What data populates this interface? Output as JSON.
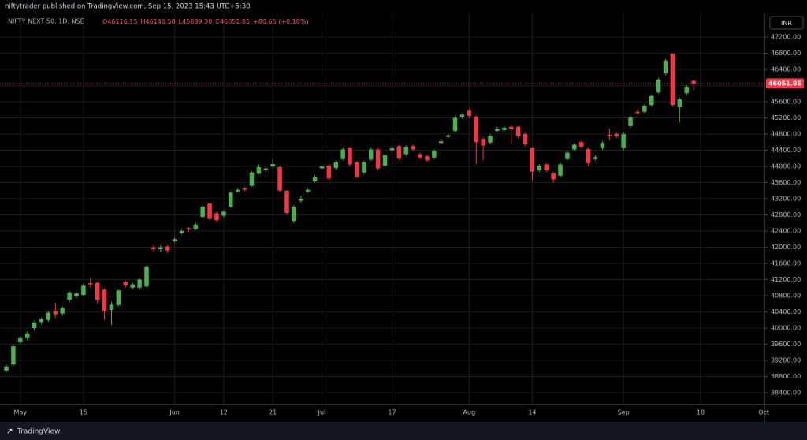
{
  "chart_data": {
    "type": "candlestick",
    "header": "niftytrader published on TradingView.com, Sep 15, 2023 15:43 UTC+5:30",
    "title": "NIFTY NEXT 50, 1D, NSE",
    "ohlc_labels": [
      "O46116.15",
      "H46146.50",
      "L45889.30",
      "C46051.85",
      "+80.65 (+0.18%)"
    ],
    "last_price_label": "46051.85",
    "currency": "INR",
    "brand": "TradingView",
    "up_color": "#4caf50",
    "down_color": "#f23645",
    "grid": true,
    "xlim": [
      -0.9,
      108.1
    ],
    "ylim": [
      38128,
      47785
    ],
    "xticks": [
      {
        "value": 2,
        "label": "May"
      },
      {
        "value": 11,
        "label": "15"
      },
      {
        "value": 24,
        "label": "Jun"
      },
      {
        "value": 31,
        "label": "12"
      },
      {
        "value": 38,
        "label": "21"
      },
      {
        "value": 45,
        "label": "Jul"
      },
      {
        "value": 55,
        "label": "17"
      },
      {
        "value": 66,
        "label": "Aug"
      },
      {
        "value": 75,
        "label": "14"
      },
      {
        "value": 88,
        "label": "Sep"
      },
      {
        "value": 99,
        "label": "18"
      },
      {
        "value": 108,
        "label": "Oct"
      }
    ],
    "yticks": [
      {
        "value": 38400,
        "label": "38400.00"
      },
      {
        "value": 38800,
        "label": "38800.00"
      },
      {
        "value": 39200,
        "label": "39200.00"
      },
      {
        "value": 39600,
        "label": "39600.00"
      },
      {
        "value": 40000,
        "label": "40000.00"
      },
      {
        "value": 40400,
        "label": "40400.00"
      },
      {
        "value": 40800,
        "label": "40800.00"
      },
      {
        "value": 41200,
        "label": "41200.00"
      },
      {
        "value": 41600,
        "label": "41600.00"
      },
      {
        "value": 42000,
        "label": "42000.00"
      },
      {
        "value": 42400,
        "label": "42400.00"
      },
      {
        "value": 42800,
        "label": "42800.00"
      },
      {
        "value": 43200,
        "label": "43200.00"
      },
      {
        "value": 43600,
        "label": "43600.00"
      },
      {
        "value": 44000,
        "label": "44000.00"
      },
      {
        "value": 44400,
        "label": "44400.00"
      },
      {
        "value": 44800,
        "label": "44800.00"
      },
      {
        "value": 45200,
        "label": "45200.00"
      },
      {
        "value": 45600,
        "label": "45600.00"
      },
      {
        "value": 46000,
        "label": "46000.00"
      },
      {
        "value": 46400,
        "label": "46400.00"
      },
      {
        "value": 46800,
        "label": "46800.00"
      },
      {
        "value": 47200,
        "label": "47200.00"
      }
    ],
    "open": [
      38950,
      39100,
      39650,
      39750,
      40000,
      40150,
      40200,
      40420,
      40360,
      40700,
      40780,
      40820,
      41110,
      41120,
      40950,
      40450,
      40570,
      41150,
      41000,
      41000,
      41030,
      42000,
      41950,
      42020,
      42150,
      42350,
      42470,
      42450,
      42750,
      43080,
      42840,
      42780,
      43000,
      43380,
      43460,
      43520,
      43820,
      43900,
      44000,
      43980,
      43400,
      42650,
      43150,
      43380,
      43630,
      43950,
      44020,
      43960,
      44180,
      44450,
      44100,
      43850,
      44170,
      44420,
      44020,
      44400,
      44500,
      44300,
      44500,
      44300,
      44250,
      44220,
      44580,
      44730,
      44880,
      45220,
      45380,
      45230,
      44680,
      44590,
      44880,
      44900,
      44980,
      44980,
      44800,
      44450,
      43900,
      44050,
      43830,
      43770,
      44180,
      44420,
      44600,
      44430,
      44180,
      44450,
      44780,
      44800,
      44450,
      45000,
      45350,
      45350,
      45520,
      45830,
      46300,
      46790,
      45460,
      45810,
      46116.15
    ],
    "close": [
      39050,
      39550,
      39750,
      39870,
      40140,
      40220,
      40380,
      40340,
      40500,
      40880,
      40860,
      41050,
      41080,
      40700,
      40420,
      40580,
      40930,
      41050,
      41080,
      41200,
      41520,
      41950,
      42000,
      41920,
      42200,
      42400,
      42440,
      42560,
      43000,
      42700,
      42670,
      42880,
      43350,
      43420,
      43420,
      43850,
      43980,
      43950,
      44060,
      43400,
      42850,
      43000,
      43200,
      43420,
      43750,
      44000,
      43700,
      44100,
      44420,
      44050,
      43750,
      44100,
      44420,
      43950,
      44280,
      44450,
      44200,
      44480,
      44420,
      44220,
      44150,
      44380,
      44620,
      44770,
      45200,
      45280,
      45250,
      44600,
      44520,
      44750,
      44920,
      44960,
      44920,
      44750,
      44550,
      43870,
      44020,
      43900,
      43680,
      44050,
      44340,
      44540,
      44480,
      44080,
      44230,
      44580,
      44750,
      44740,
      44800,
      45210,
      45320,
      45500,
      45740,
      46150,
      46620,
      45520,
      45660,
      45970,
      46051.85
    ],
    "high": [
      39100,
      39600,
      39800,
      39920,
      40180,
      40260,
      40420,
      40620,
      40540,
      40920,
      40900,
      41100,
      41260,
      41150,
      40980,
      40650,
      40960,
      41180,
      41120,
      41250,
      41560,
      42050,
      42050,
      42050,
      42240,
      42440,
      42500,
      42600,
      43040,
      43100,
      42880,
      42920,
      43380,
      43460,
      43500,
      43880,
      44050,
      44000,
      44180,
      44020,
      43420,
      43040,
      43280,
      43460,
      43790,
      44040,
      44060,
      44140,
      44460,
      44480,
      44140,
      44140,
      44460,
      44450,
      44320,
      44500,
      44530,
      44520,
      44540,
      44340,
      44290,
      44420,
      44680,
      44820,
      45240,
      45320,
      45420,
      45260,
      44720,
      44790,
      44980,
      45000,
      45020,
      45010,
      44830,
      44480,
      44060,
      44080,
      43860,
      44090,
      44380,
      44580,
      44640,
      44460,
      44280,
      44620,
      44940,
      44840,
      44840,
      45250,
      45390,
      45540,
      45780,
      46190,
      46660,
      46800,
      45700,
      46010,
      46146.5
    ],
    "low": [
      38900,
      39050,
      39600,
      39700,
      39950,
      40100,
      40150,
      40250,
      40300,
      40650,
      40740,
      40780,
      41000,
      40600,
      40200,
      40080,
      40540,
      41000,
      40960,
      40960,
      41000,
      41900,
      41880,
      41850,
      42120,
      42320,
      42380,
      42420,
      42720,
      42660,
      42620,
      42740,
      42980,
      43350,
      43380,
      43500,
      43800,
      43860,
      43960,
      43360,
      42800,
      42600,
      43100,
      43340,
      43600,
      43900,
      43660,
      43920,
      44150,
      44000,
      43700,
      43800,
      44140,
      43900,
      43980,
      44360,
      44160,
      44260,
      44380,
      44180,
      44110,
      44180,
      44540,
      44690,
      44850,
      45180,
      45200,
      44050,
      44150,
      44550,
      44840,
      44860,
      44560,
      44700,
      44500,
      43650,
      43860,
      43860,
      43600,
      43730,
      44150,
      44380,
      44440,
      44000,
      44140,
      44410,
      44650,
      44700,
      44400,
      44960,
      45280,
      45320,
      45480,
      45800,
      46260,
      45480,
      45100,
      45760,
      45889.3
    ]
  }
}
